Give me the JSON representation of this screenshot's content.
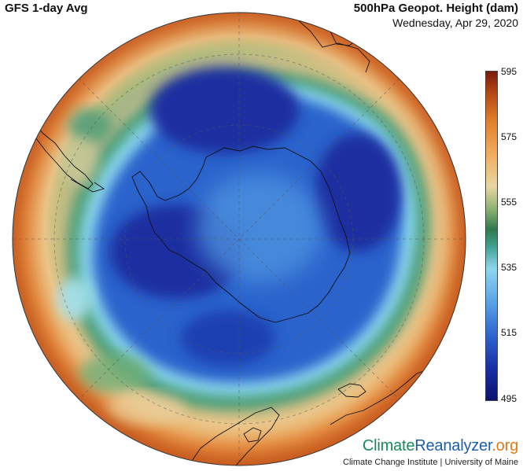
{
  "header": {
    "model": "GFS 1-day Avg",
    "variable": "500hPa Geopot. Height (dam)",
    "date": "Wednesday, Apr 29, 2020"
  },
  "colorbar": {
    "ticks": [
      "595",
      "575",
      "555",
      "535",
      "515",
      "495"
    ],
    "range": [
      495,
      595
    ],
    "colors": {
      "low": "#0b1170",
      "mid_low": "#5aa4e6",
      "mid": "#2f7a4d",
      "mid_high": "#e8d7a2",
      "high": "#e07f2a",
      "max": "#7a1a0a"
    }
  },
  "branding": {
    "climate": "Climate",
    "reanalyzer": "Reanalyzer",
    "org": ".org",
    "credit": "Climate Change Institute | University of Maine"
  }
}
